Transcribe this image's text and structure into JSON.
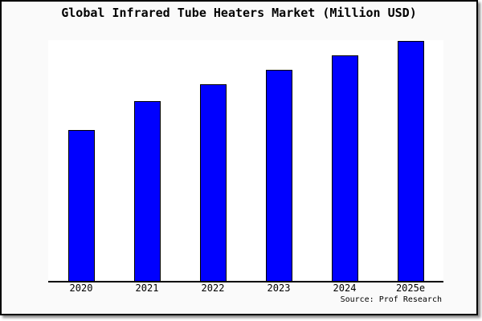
{
  "chart_data": {
    "type": "bar",
    "title": "Global Infrared Tube Heaters Market (Million USD)",
    "categories": [
      "2020",
      "2021",
      "2022",
      "2023",
      "2024",
      "2025e"
    ],
    "values": [
      63,
      75,
      82,
      88,
      94,
      100
    ],
    "xlabel": "",
    "ylabel": "",
    "ylim": [
      0,
      100.5
    ],
    "y_axis_visible": false,
    "grid": false,
    "legend": false,
    "values_note": "relative heights estimated from pixels; chart shows no y-axis scale",
    "bar_color": "#0000ff",
    "bar_border_color": "#000000"
  },
  "source": {
    "label": "Source: Prof Research"
  },
  "colors": {
    "figure_background": "#fafafa",
    "plot_background": "#ffffff",
    "frame_border": "#000000",
    "shadow": "#8a8a8a",
    "text": "#000000"
  }
}
